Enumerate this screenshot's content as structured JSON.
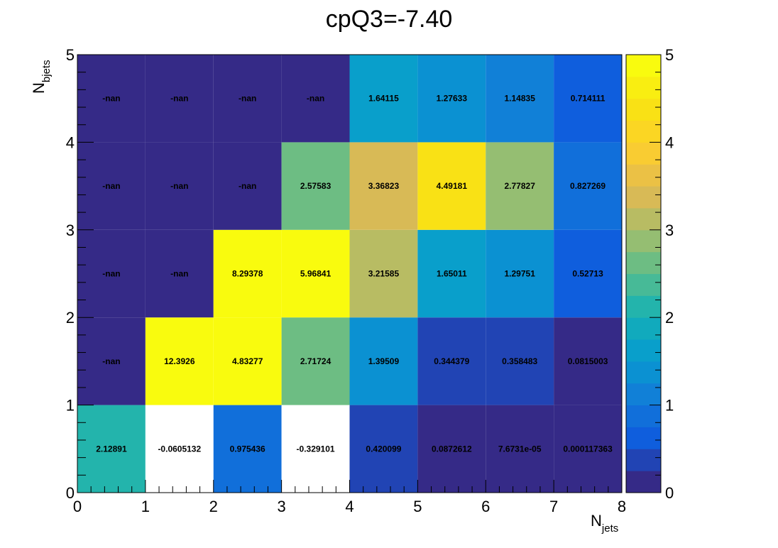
{
  "chart_data": {
    "type": "heatmap",
    "title": "cpQ3=-7.40",
    "xlabel": {
      "main": "N",
      "sub": "jets"
    },
    "ylabel": {
      "main": "N",
      "sub": "bjets"
    },
    "x_edges": [
      0,
      1,
      2,
      3,
      4,
      5,
      6,
      7,
      8
    ],
    "y_edges": [
      0,
      1,
      2,
      3,
      4,
      5
    ],
    "x_ticks": [
      "0",
      "1",
      "2",
      "3",
      "4",
      "5",
      "6",
      "7",
      "8"
    ],
    "y_ticks": [
      "0",
      "1",
      "2",
      "3",
      "4",
      "5"
    ],
    "zlim": [
      0,
      5
    ],
    "z_ticks": [
      "0",
      "1",
      "2",
      "3",
      "4",
      "5"
    ],
    "colormap": "parula",
    "rows": [
      {
        "y_bin": 0,
        "values": [
          2.12891,
          -0.0605132,
          0.975436,
          -0.329101,
          0.420099,
          0.0872612,
          7.6731e-05,
          0.000117363
        ],
        "labels": [
          "2.12891",
          "-0.0605132",
          "0.975436",
          "-0.329101",
          "0.420099",
          "0.0872612",
          "7.6731e-05",
          "0.000117363"
        ]
      },
      {
        "y_bin": 1,
        "values": [
          null,
          12.3926,
          4.83277,
          2.71724,
          1.39509,
          0.344379,
          0.358483,
          0.0815003
        ],
        "labels": [
          "-nan",
          "12.3926",
          "4.83277",
          "2.71724",
          "1.39509",
          "0.344379",
          "0.358483",
          "0.0815003"
        ]
      },
      {
        "y_bin": 2,
        "values": [
          null,
          null,
          8.29378,
          5.96841,
          3.21585,
          1.65011,
          1.29751,
          0.52713
        ],
        "labels": [
          "-nan",
          "-nan",
          "8.29378",
          "5.96841",
          "3.21585",
          "1.65011",
          "1.29751",
          "0.52713"
        ]
      },
      {
        "y_bin": 3,
        "values": [
          null,
          null,
          null,
          2.57583,
          3.36823,
          4.49181,
          2.77827,
          0.827269
        ],
        "labels": [
          "-nan",
          "-nan",
          "-nan",
          "2.57583",
          "3.36823",
          "4.49181",
          "2.77827",
          "0.827269"
        ]
      },
      {
        "y_bin": 4,
        "values": [
          null,
          null,
          null,
          null,
          1.64115,
          1.27633,
          1.14835,
          0.714111
        ],
        "labels": [
          "-nan",
          "-nan",
          "-nan",
          "-nan",
          "1.64115",
          "1.27633",
          "1.14835",
          "0.714111"
        ]
      }
    ],
    "nan_color": "#352a87",
    "below_min_color": "#ffffff",
    "grid": false,
    "legend": "colorbar-right"
  }
}
